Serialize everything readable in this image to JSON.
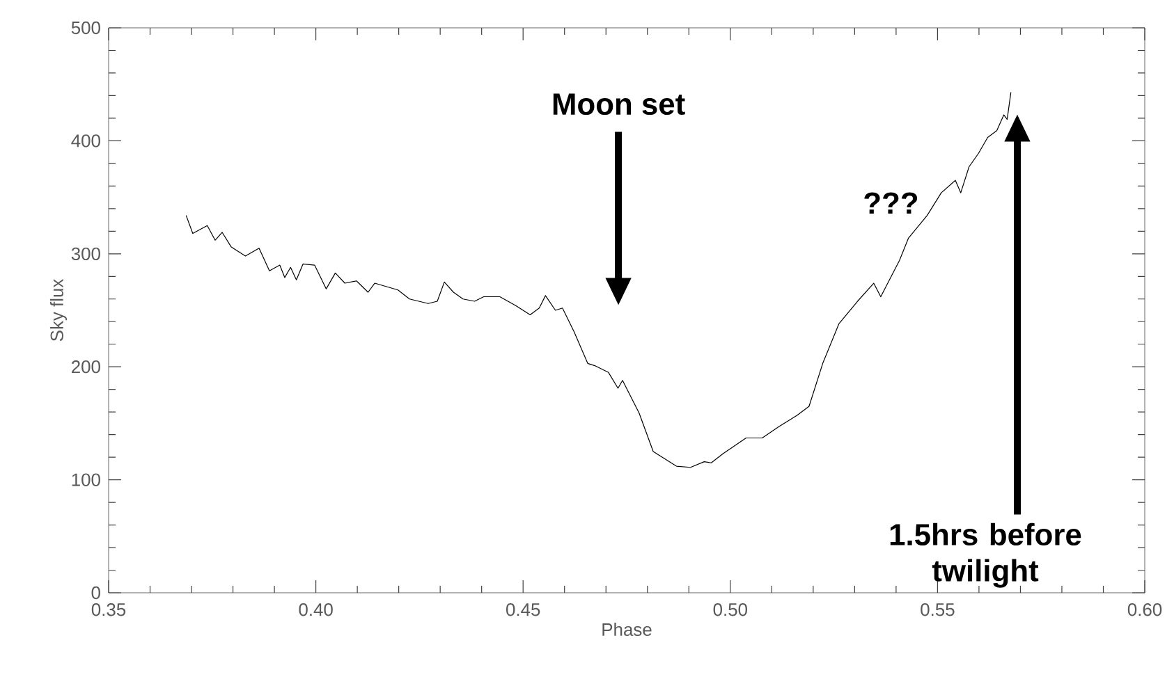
{
  "chart_data": {
    "type": "line",
    "xlabel": "Phase",
    "ylabel": "Sky flux",
    "xlim": [
      0.35,
      0.6
    ],
    "ylim": [
      0,
      500
    ],
    "xticks": [
      {
        "value": 0.35,
        "label": "0.35"
      },
      {
        "value": 0.4,
        "label": "0.40"
      },
      {
        "value": 0.45,
        "label": "0.45"
      },
      {
        "value": 0.5,
        "label": "0.50"
      },
      {
        "value": 0.55,
        "label": "0.55"
      },
      {
        "value": 0.6,
        "label": "0.60"
      }
    ],
    "yticks": [
      0,
      100,
      200,
      300,
      400,
      500
    ],
    "series": [
      {
        "color": "#000000",
        "x": [
          0.3687,
          0.3703,
          0.3738,
          0.3757,
          0.3774,
          0.3796,
          0.383,
          0.3863,
          0.3888,
          0.3913,
          0.3925,
          0.3939,
          0.3953,
          0.3969,
          0.3997,
          0.4025,
          0.4047,
          0.407,
          0.4098,
          0.4126,
          0.4142,
          0.4198,
          0.4226,
          0.4271,
          0.4293,
          0.431,
          0.4332,
          0.4355,
          0.4383,
          0.4405,
          0.4444,
          0.4483,
          0.4517,
          0.4539,
          0.4554,
          0.4578,
          0.4595,
          0.4623,
          0.4656,
          0.4673,
          0.4706,
          0.4729,
          0.474,
          0.478,
          0.4814,
          0.487,
          0.4904,
          0.4937,
          0.4954,
          0.4982,
          0.5038,
          0.5077,
          0.5117,
          0.5161,
          0.519,
          0.5223,
          0.5262,
          0.5307,
          0.5346,
          0.5363,
          0.5408,
          0.543,
          0.5475,
          0.5509,
          0.5543,
          0.5556,
          0.5576,
          0.5599,
          0.5621,
          0.5643,
          0.566,
          0.5668,
          0.5677
        ],
        "values": [
          334,
          318,
          325,
          312,
          319,
          306,
          298,
          305,
          285,
          290,
          279,
          288,
          277,
          291,
          290,
          269,
          283,
          274,
          276,
          266,
          274,
          268,
          260,
          256,
          258,
          275,
          266,
          260,
          258,
          262,
          262,
          254,
          246,
          252,
          263,
          250,
          252,
          231,
          203,
          201,
          195,
          181,
          188,
          159,
          125,
          112,
          111,
          116,
          115,
          123,
          137,
          137,
          147,
          157,
          165,
          203,
          238,
          258,
          274,
          262,
          294,
          314,
          334,
          354,
          365,
          354,
          377,
          389,
          403,
          409,
          423,
          419,
          443
        ]
      }
    ],
    "annotations": [
      "Moon set",
      "???",
      "1.5hrs before twilight"
    ],
    "marker": "none",
    "line_style": "solid",
    "grid": false
  }
}
